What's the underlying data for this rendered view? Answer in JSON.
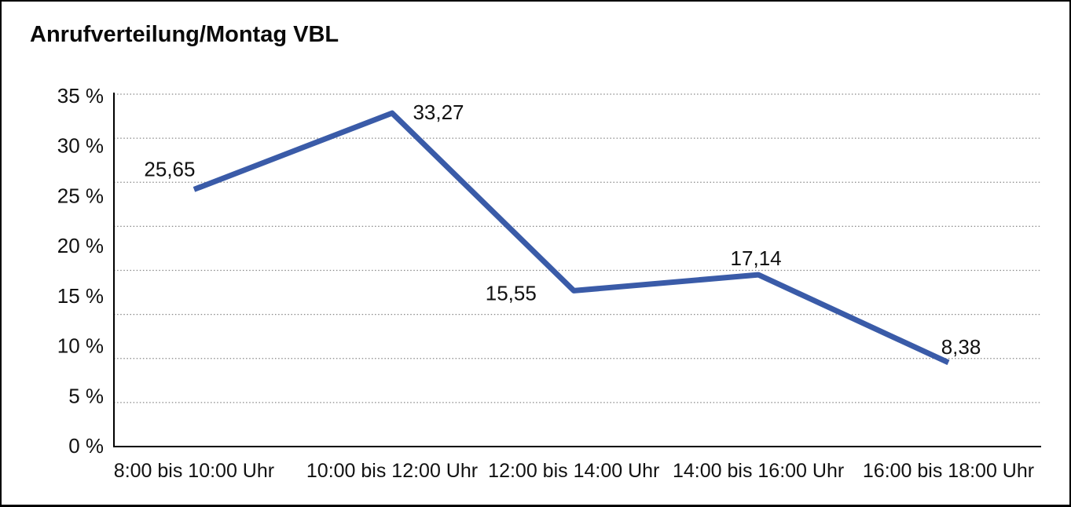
{
  "chart_data": {
    "type": "line",
    "title": "Anrufverteilung/Montag VBL",
    "categories": [
      "8:00 bis 10:00 Uhr",
      "10:00 bis 12:00 Uhr",
      "12:00 bis 14:00 Uhr",
      "14:00 bis 16:00 Uhr",
      "16:00 bis 18:00 Uhr"
    ],
    "values": [
      25.65,
      33.27,
      15.55,
      17.14,
      8.38
    ],
    "data_labels": [
      "25,65",
      "33,27",
      "15,55",
      "17,14",
      "8,38"
    ],
    "y_tick_labels": [
      "35 %",
      "30 %",
      "25 %",
      "20 %",
      "15 %",
      "10 %",
      "5 %",
      "0 %"
    ],
    "xlabel": "",
    "ylabel": "",
    "ylim": [
      0,
      35
    ],
    "grid": true,
    "grid_style": "dotted",
    "grid_divisions": 8,
    "legend": false,
    "line_color": "#3A5BA8",
    "axis_color": "#000000",
    "label_color": "#111111"
  }
}
